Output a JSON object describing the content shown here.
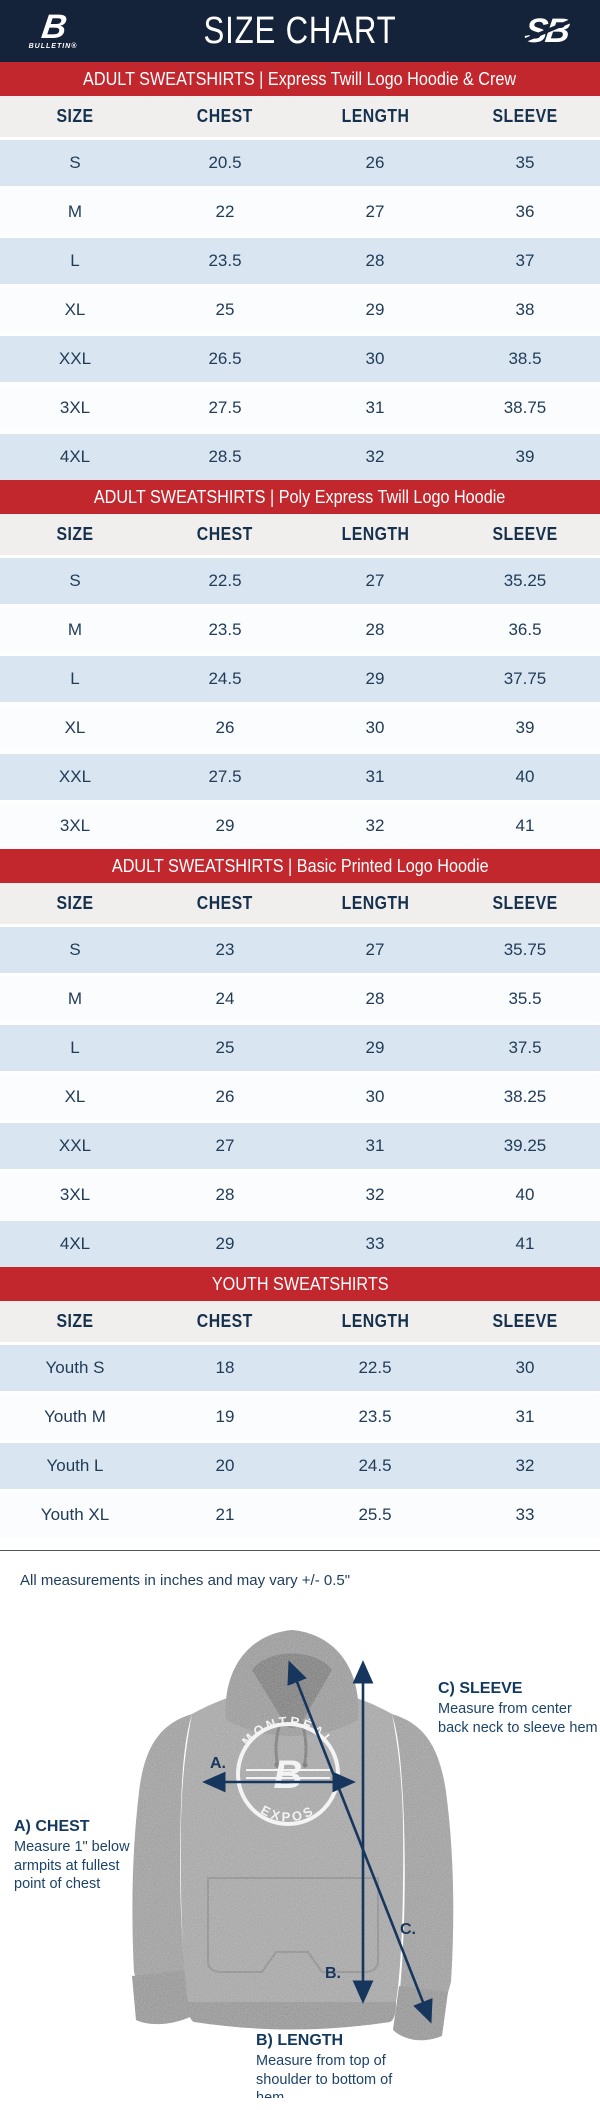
{
  "header": {
    "title": "SIZE CHART",
    "left_logo_mark": "B",
    "left_logo_text": "BULLETIN®",
    "right_logo_mark": "SB"
  },
  "columns": [
    "SIZE",
    "CHEST",
    "LENGTH",
    "SLEEVE"
  ],
  "sections": [
    {
      "banner": "ADULT SWEATSHIRTS | Express Twill Logo Hoodie & Crew",
      "rows": [
        [
          "S",
          "20.5",
          "26",
          "35"
        ],
        [
          "M",
          "22",
          "27",
          "36"
        ],
        [
          "L",
          "23.5",
          "28",
          "37"
        ],
        [
          "XL",
          "25",
          "29",
          "38"
        ],
        [
          "XXL",
          "26.5",
          "30",
          "38.5"
        ],
        [
          "3XL",
          "27.5",
          "31",
          "38.75"
        ],
        [
          "4XL",
          "28.5",
          "32",
          "39"
        ]
      ]
    },
    {
      "banner": "ADULT SWEATSHIRTS | Poly Express Twill Logo Hoodie",
      "rows": [
        [
          "S",
          "22.5",
          "27",
          "35.25"
        ],
        [
          "M",
          "23.5",
          "28",
          "36.5"
        ],
        [
          "L",
          "24.5",
          "29",
          "37.75"
        ],
        [
          "XL",
          "26",
          "30",
          "39"
        ],
        [
          "XXL",
          "27.5",
          "31",
          "40"
        ],
        [
          "3XL",
          "29",
          "32",
          "41"
        ]
      ]
    },
    {
      "banner": "ADULT SWEATSHIRTS | Basic Printed Logo Hoodie",
      "rows": [
        [
          "S",
          "23",
          "27",
          "35.75"
        ],
        [
          "M",
          "24",
          "28",
          "35.5"
        ],
        [
          "L",
          "25",
          "29",
          "37.5"
        ],
        [
          "XL",
          "26",
          "30",
          "38.25"
        ],
        [
          "XXL",
          "27",
          "31",
          "39.25"
        ],
        [
          "3XL",
          "28",
          "32",
          "40"
        ],
        [
          "4XL",
          "29",
          "33",
          "41"
        ]
      ]
    },
    {
      "banner": "YOUTH SWEATSHIRTS",
      "rows": [
        [
          "Youth S",
          "18",
          "22.5",
          "30"
        ],
        [
          "Youth M",
          "19",
          "23.5",
          "31"
        ],
        [
          "Youth L",
          "20",
          "24.5",
          "32"
        ],
        [
          "Youth XL",
          "21",
          "25.5",
          "33"
        ]
      ]
    }
  ],
  "note": "All measurements in inches and may vary +/- 0.5\"",
  "diagram": {
    "chest_label": "A) CHEST",
    "chest_desc": "Measure 1\" below armpits at fullest point of chest",
    "length_label": "B) LENGTH",
    "length_desc": "Measure from top of shoulder to bottom of hem",
    "sleeve_label": "C) SLEEVE",
    "sleeve_desc": "Measure from center back neck to sleeve hem",
    "marker_a": "A.",
    "marker_b": "B.",
    "marker_c": "C.",
    "logo_top": "MONTRÉAL",
    "logo_bottom": "EXPOS",
    "logo_mark": "B"
  },
  "colors": {
    "navy_header": "#15233a",
    "banner_red": "#c1272d",
    "row_blue": "#d9e6f2",
    "row_white": "#fbfcfe",
    "table_head_gray": "#f0efed",
    "text_navy": "#16314e",
    "arrow_navy": "#17365d",
    "hoodie_gray": "#9d9d9d"
  }
}
